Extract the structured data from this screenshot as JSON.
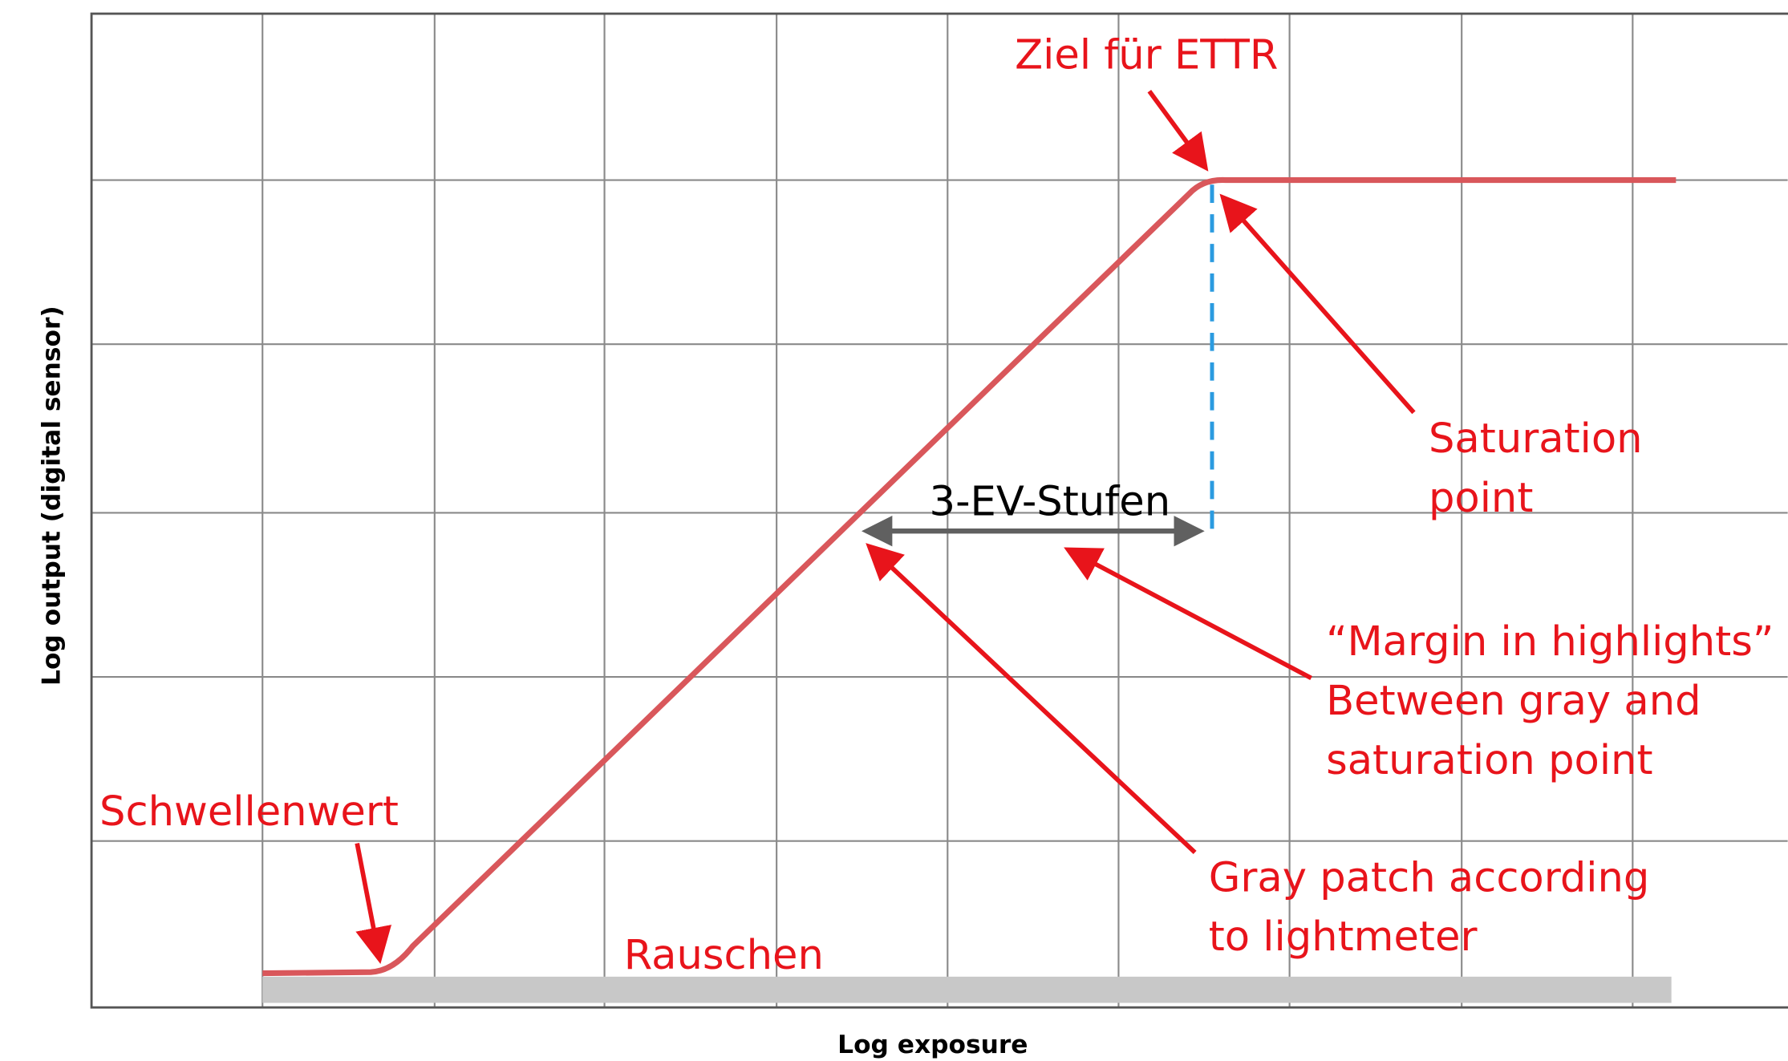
{
  "diagram": {
    "x_axis_label": "Log exposure",
    "y_axis_label": "Log output (digital sensor)",
    "annotations": {
      "target": "Ziel für ETTR",
      "saturation": [
        "Saturation",
        "point"
      ],
      "ev_steps": "3-EV-Stufen",
      "margin": [
        "“Margin in highlights”",
        "Between gray and",
        "saturation point"
      ],
      "gray_patch": [
        "Gray patch according",
        "to lightmeter"
      ],
      "threshold": "Schwellenwert",
      "noise": "Rauschen"
    }
  }
}
